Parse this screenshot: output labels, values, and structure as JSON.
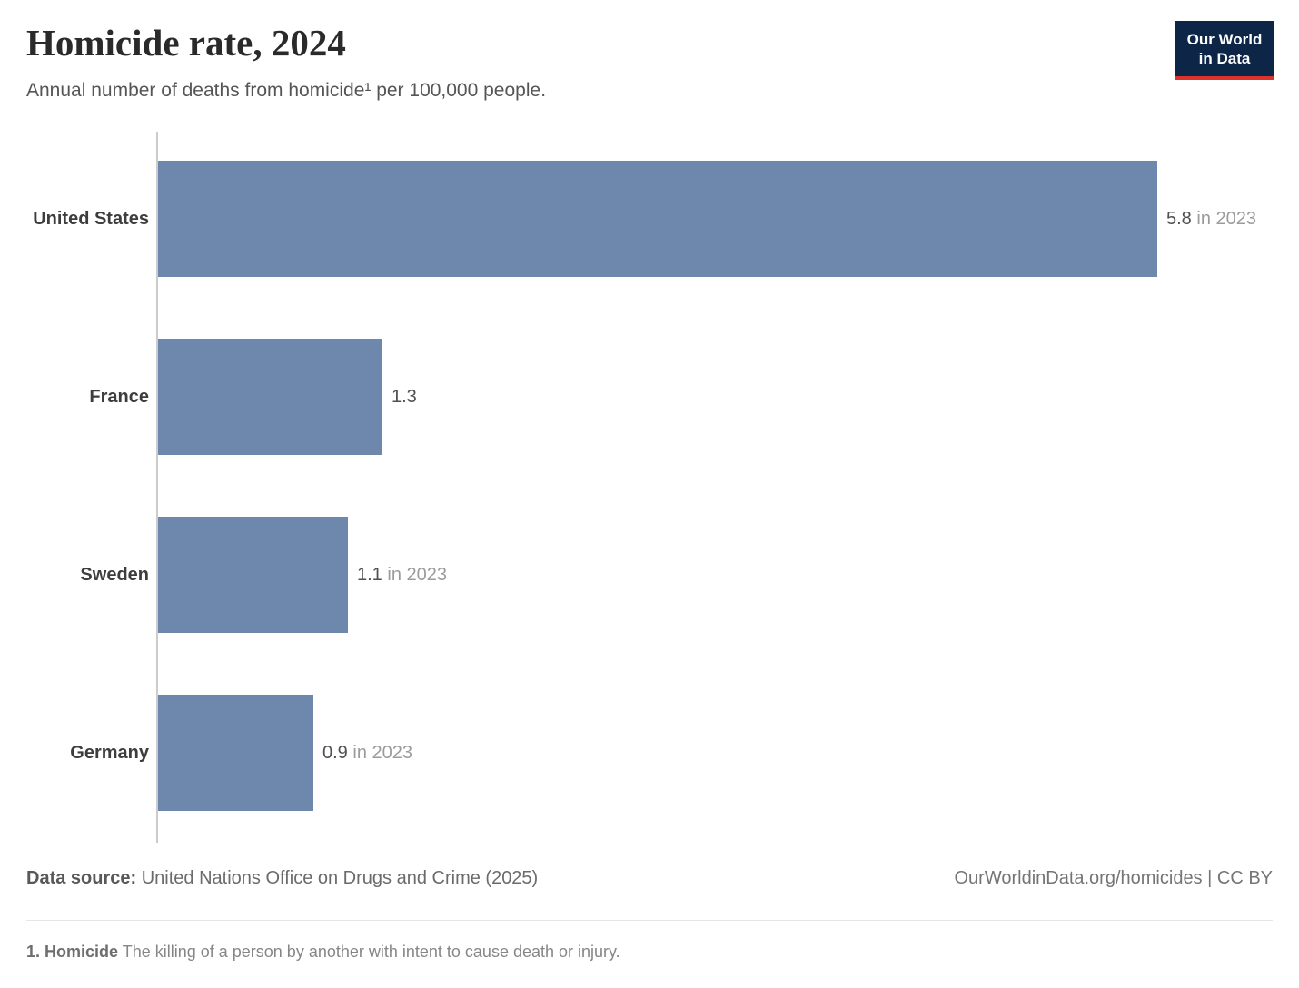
{
  "header": {
    "title": "Homicide rate, 2024",
    "subtitle": "Annual number of deaths from homicide¹ per 100,000 people.",
    "logo_line1": "Our World",
    "logo_line2": "in Data"
  },
  "chart_data": {
    "type": "bar",
    "orientation": "horizontal",
    "categories": [
      "United States",
      "France",
      "Sweden",
      "Germany"
    ],
    "values": [
      5.8,
      1.3,
      1.1,
      0.9
    ],
    "value_labels": [
      "5.8",
      "1.3",
      "1.1",
      "0.9"
    ],
    "year_notes": [
      " in 2023",
      "",
      " in 2023",
      " in 2023"
    ],
    "xlim": [
      0,
      5.8
    ],
    "title": "Homicide rate, 2024",
    "xlabel": "",
    "ylabel": "",
    "grid": false,
    "legend": "none",
    "bar_color": "#6e87ad"
  },
  "colors": {
    "bar": "#6e87ad",
    "axis": "#cccccc",
    "logo_navy": "#0d2647",
    "logo_red": "#dc322c"
  },
  "footer": {
    "source_label": "Data source:",
    "source_value": " United Nations Office on Drugs and Crime (2025)",
    "attribution": "OurWorldinData.org/homicides | CC BY",
    "note_label": "1. Homicide",
    "note_text": " The killing of a person by another with intent to cause death or injury."
  }
}
